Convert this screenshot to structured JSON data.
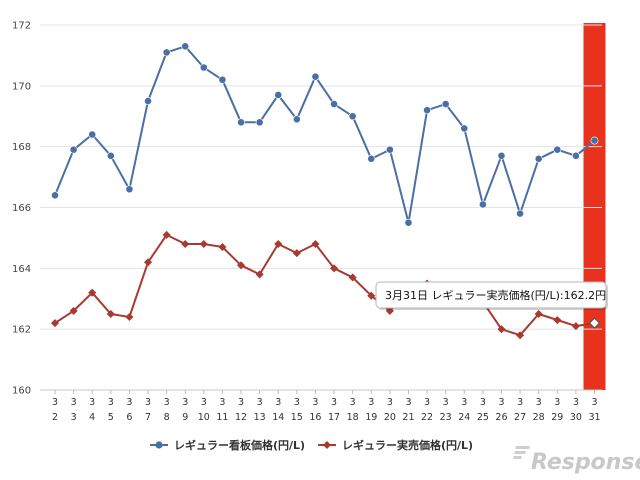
{
  "chart_data": {
    "type": "line",
    "categories": [
      {
        "month": "3",
        "day": "2"
      },
      {
        "month": "3",
        "day": "3"
      },
      {
        "month": "3",
        "day": "4"
      },
      {
        "month": "3",
        "day": "5"
      },
      {
        "month": "3",
        "day": "6"
      },
      {
        "month": "3",
        "day": "7"
      },
      {
        "month": "3",
        "day": "8"
      },
      {
        "month": "3",
        "day": "9"
      },
      {
        "month": "3",
        "day": "10"
      },
      {
        "month": "3",
        "day": "11"
      },
      {
        "month": "3",
        "day": "12"
      },
      {
        "month": "3",
        "day": "13"
      },
      {
        "month": "3",
        "day": "14"
      },
      {
        "month": "3",
        "day": "15"
      },
      {
        "month": "3",
        "day": "16"
      },
      {
        "month": "3",
        "day": "17"
      },
      {
        "month": "3",
        "day": "18"
      },
      {
        "month": "3",
        "day": "19"
      },
      {
        "month": "3",
        "day": "20"
      },
      {
        "month": "3",
        "day": "21"
      },
      {
        "month": "3",
        "day": "22"
      },
      {
        "month": "3",
        "day": "23"
      },
      {
        "month": "3",
        "day": "24"
      },
      {
        "month": "3",
        "day": "25"
      },
      {
        "month": "3",
        "day": "26"
      },
      {
        "month": "3",
        "day": "27"
      },
      {
        "month": "3",
        "day": "28"
      },
      {
        "month": "3",
        "day": "29"
      },
      {
        "month": "3",
        "day": "30"
      },
      {
        "month": "3",
        "day": "31"
      }
    ],
    "series": [
      {
        "name": "レギュラー看板価格(円/L)",
        "color": "#4a6fa5",
        "marker": "circle",
        "values": [
          166.4,
          167.9,
          168.4,
          167.7,
          166.6,
          169.5,
          171.1,
          171.3,
          170.6,
          170.2,
          168.8,
          168.8,
          169.7,
          168.9,
          170.3,
          169.4,
          169.0,
          167.6,
          167.9,
          165.5,
          169.2,
          169.4,
          168.6,
          166.1,
          167.7,
          165.8,
          167.6,
          167.9,
          167.7,
          168.2
        ]
      },
      {
        "name": "レギュラー実売価格(円/L)",
        "color": "#a83a32",
        "marker": "diamond",
        "values": [
          162.2,
          162.6,
          163.2,
          162.5,
          162.4,
          164.2,
          165.1,
          164.8,
          164.8,
          164.7,
          164.1,
          163.8,
          164.8,
          164.5,
          164.8,
          164.0,
          163.7,
          163.1,
          162.6,
          163.3,
          163.5,
          163.4,
          163.0,
          162.9,
          162.0,
          161.8,
          162.5,
          162.3,
          162.1,
          162.2
        ]
      }
    ],
    "ylim": [
      160,
      172
    ],
    "yticks": [
      160,
      162,
      164,
      166,
      168,
      170,
      172
    ],
    "grid": true,
    "legend_position": "bottom",
    "highlight": {
      "index": 29,
      "band_color": "#e8321e",
      "tooltip": "3月31日 レギュラー実売価格(円/L):162.2円"
    }
  },
  "watermark": {
    "text": "Response."
  }
}
